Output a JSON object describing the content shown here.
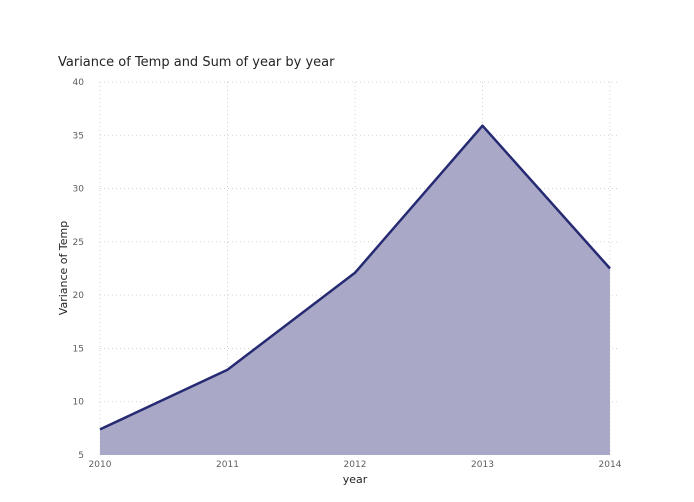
{
  "chart_data": {
    "type": "area",
    "title": "Variance of Temp and Sum of year by year",
    "xlabel": "year",
    "ylabel": "Variance of Temp",
    "x": [
      "2010",
      "2011",
      "2012",
      "2013",
      "2014"
    ],
    "series": [
      {
        "values": [
          7.4,
          13.0,
          22.1,
          35.9,
          22.5
        ]
      }
    ],
    "ylim": [
      5,
      40
    ],
    "yticks": [
      5,
      10,
      15,
      20,
      25,
      30,
      35,
      40
    ],
    "grid": true,
    "colors": {
      "line": "#252a72",
      "fill": "#a9a9c7"
    }
  }
}
